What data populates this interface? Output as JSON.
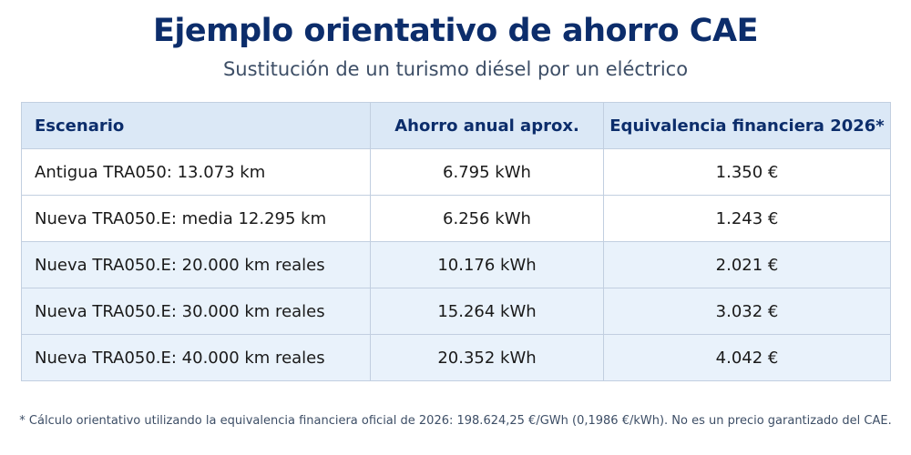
{
  "title": "Ejemplo orientativo de ahorro CAE",
  "subtitle": "Sustitución de un turismo diésel por un eléctrico",
  "table": {
    "headers": [
      "Escenario",
      "Ahorro anual aprox.",
      "Equivalencia financiera 2026*"
    ],
    "rows": [
      [
        "Antigua TRA050: 13.073 km",
        "6.795 kWh",
        "1.350 €"
      ],
      [
        "Nueva TRA050.E: media 12.295 km",
        "6.256 kWh",
        "1.243 €"
      ],
      [
        "Nueva TRA050.E: 20.000 km reales",
        "10.176 kWh",
        "2.021 €"
      ],
      [
        "Nueva TRA050.E: 30.000 km reales",
        "15.264 kWh",
        "3.032 €"
      ],
      [
        "Nueva TRA050.E: 40.000 km reales",
        "20.352 kWh",
        "4.042 €"
      ]
    ]
  },
  "footnote": "* Cálculo orientativo utilizando la equivalencia financiera oficial de 2026: 198.624,25 €/GWh (0,1986 €/kWh). No es un precio garantizado del CAE.",
  "colors": {
    "title": "#0c2d6b",
    "header_bg": "#dbe8f6",
    "row_highlight_bg": "#e9f2fb",
    "border": "#c2cfe0"
  }
}
